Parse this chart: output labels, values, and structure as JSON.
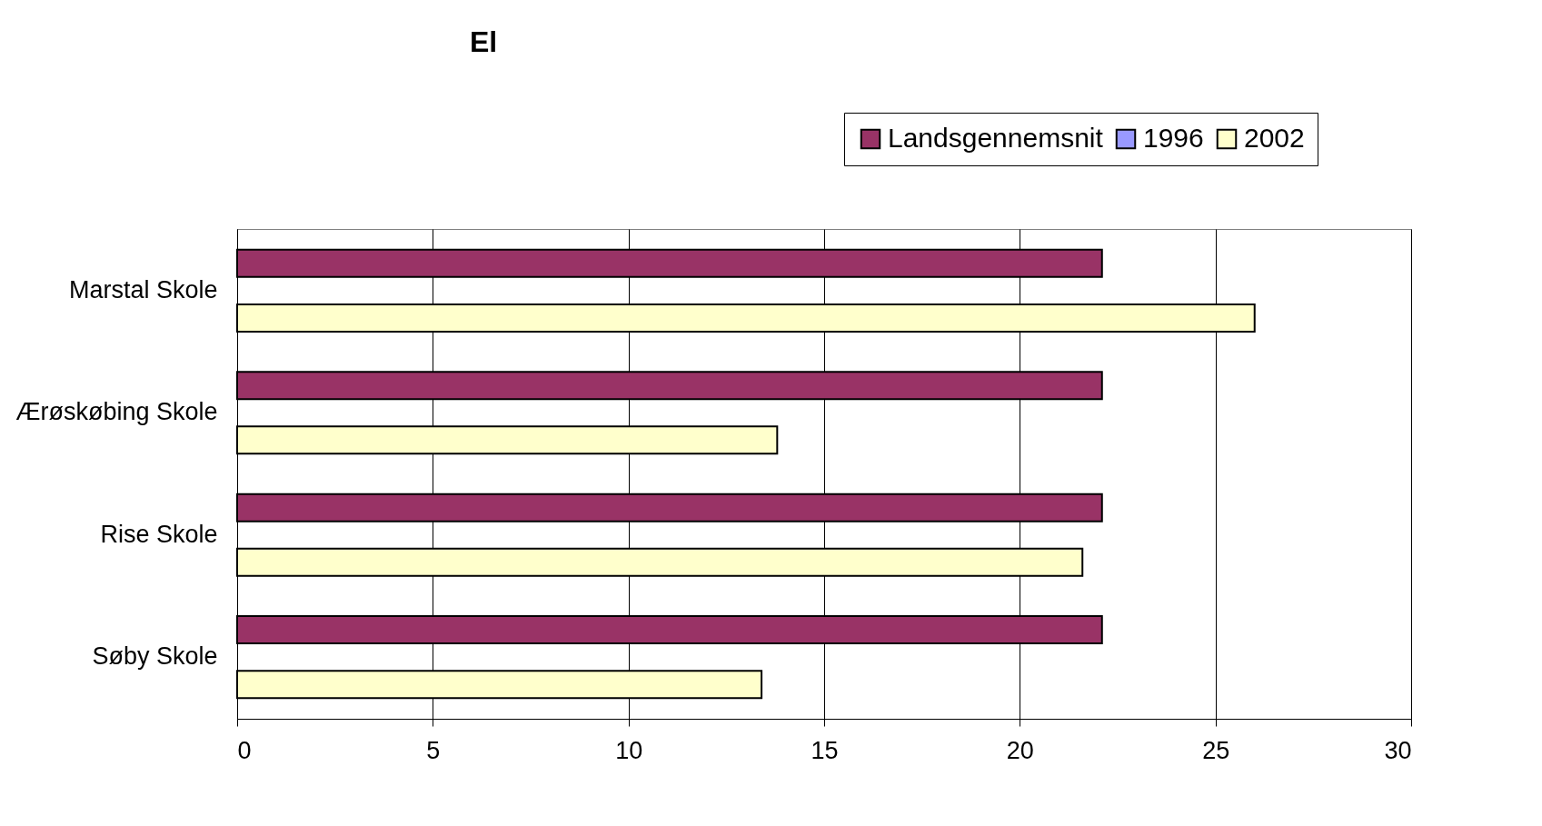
{
  "chart_data": {
    "type": "bar",
    "orientation": "horizontal",
    "title": "El",
    "categories": [
      "Marstal Skole",
      "Ærøskøbing Skole",
      "Rise Skole",
      "Søby Skole"
    ],
    "series": [
      {
        "name": "Landsgennemsnit",
        "color": "#993366",
        "values": [
          22.1,
          22.1,
          22.1,
          22.1
        ]
      },
      {
        "name": "1996",
        "color": "#9999ff",
        "values": [
          null,
          null,
          null,
          null
        ]
      },
      {
        "name": "2002",
        "color": "#ffffcc",
        "values": [
          26.0,
          13.8,
          21.6,
          13.4
        ]
      }
    ],
    "xlim": [
      0,
      30
    ],
    "xticks": [
      0,
      5,
      10,
      15,
      20,
      25,
      30
    ],
    "grid": "x",
    "legend": "top right"
  }
}
